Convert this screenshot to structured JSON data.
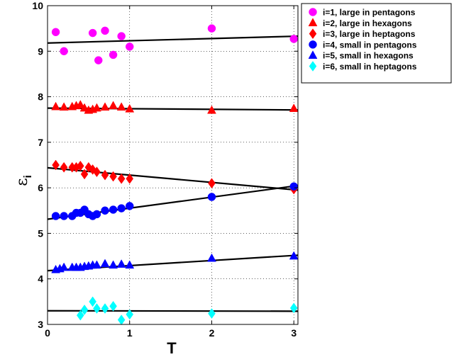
{
  "chart_data": {
    "type": "scatter",
    "xlabel": "T",
    "ylabel_main": "ε",
    "ylabel_sub": "i",
    "xlim": [
      0,
      3.05
    ],
    "ylim": [
      3,
      10
    ],
    "xticks": [
      "0",
      "1",
      "2",
      "3"
    ],
    "yticks": [
      "3",
      "4",
      "5",
      "6",
      "7",
      "8",
      "9",
      "10"
    ],
    "grid": "dotted",
    "legend_position": "outside-top-right",
    "series": [
      {
        "name": "i=1, large in pentagons",
        "marker": "circle",
        "color": "#ff00ff",
        "x": [
          0.1,
          0.2,
          0.55,
          0.62,
          0.7,
          0.8,
          0.9,
          1.0,
          2.0,
          3.0
        ],
        "y": [
          9.42,
          9.0,
          9.4,
          8.8,
          9.45,
          8.92,
          9.33,
          9.1,
          9.5,
          9.27
        ],
        "fit": [
          9.18,
          9.33
        ]
      },
      {
        "name": "i=2, large in hexagons",
        "marker": "triangle",
        "color": "#ff0000",
        "x": [
          0.1,
          0.2,
          0.3,
          0.35,
          0.4,
          0.45,
          0.5,
          0.55,
          0.6,
          0.7,
          0.8,
          0.9,
          1.0,
          2.0,
          3.0
        ],
        "y": [
          7.78,
          7.77,
          7.78,
          7.8,
          7.82,
          7.75,
          7.7,
          7.72,
          7.75,
          7.77,
          7.8,
          7.77,
          7.73,
          7.7,
          7.74
        ],
        "fit": [
          7.75,
          7.71
        ]
      },
      {
        "name": "i=3, large in heptagons",
        "marker": "diamond",
        "color": "#ff0000",
        "x": [
          0.1,
          0.2,
          0.3,
          0.35,
          0.4,
          0.45,
          0.5,
          0.55,
          0.6,
          0.7,
          0.8,
          0.9,
          1.0,
          2.0,
          3.0
        ],
        "y": [
          6.5,
          6.45,
          6.45,
          6.45,
          6.48,
          6.3,
          6.45,
          6.4,
          6.35,
          6.28,
          6.25,
          6.2,
          6.2,
          6.1,
          5.97
        ],
        "fit": [
          6.44,
          5.95
        ]
      },
      {
        "name": "i=4, small in pentagons",
        "marker": "circle",
        "color": "#0000ff",
        "x": [
          0.1,
          0.2,
          0.3,
          0.35,
          0.4,
          0.45,
          0.5,
          0.55,
          0.6,
          0.7,
          0.8,
          0.9,
          1.0,
          2.0,
          3.0
        ],
        "y": [
          5.38,
          5.38,
          5.38,
          5.45,
          5.45,
          5.52,
          5.42,
          5.38,
          5.42,
          5.5,
          5.52,
          5.55,
          5.6,
          5.8,
          6.03
        ],
        "fit": [
          5.31,
          6.05
        ]
      },
      {
        "name": "i=5, small in hexagons",
        "marker": "triangle",
        "color": "#0000ff",
        "x": [
          0.1,
          0.15,
          0.2,
          0.3,
          0.35,
          0.4,
          0.45,
          0.5,
          0.55,
          0.6,
          0.7,
          0.8,
          0.9,
          1.0,
          2.0,
          3.0
        ],
        "y": [
          4.2,
          4.22,
          4.25,
          4.25,
          4.25,
          4.25,
          4.27,
          4.28,
          4.3,
          4.3,
          4.33,
          4.3,
          4.32,
          4.3,
          4.45,
          4.5
        ],
        "fit": [
          4.18,
          4.52
        ]
      },
      {
        "name": "i=6, small in heptagons",
        "marker": "diamond",
        "color": "#00ffff",
        "x": [
          0.4,
          0.45,
          0.55,
          0.6,
          0.7,
          0.8,
          0.9,
          1.0,
          2.0,
          3.0
        ],
        "y": [
          3.2,
          3.32,
          3.5,
          3.35,
          3.35,
          3.4,
          3.1,
          3.22,
          3.24,
          3.36
        ],
        "fit": [
          3.3,
          3.29
        ]
      }
    ]
  }
}
